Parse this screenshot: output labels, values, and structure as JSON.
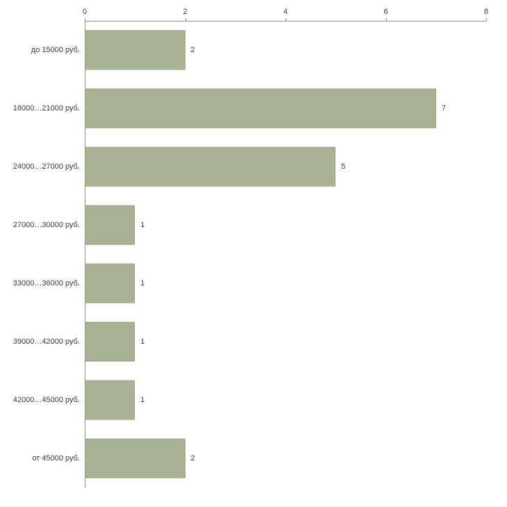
{
  "chart_data": {
    "type": "bar",
    "orientation": "horizontal",
    "title": "",
    "xlabel": "",
    "ylabel": "",
    "categories": [
      "до 15000 руб.",
      "18000…21000 руб.",
      "24000…27000 руб.",
      "27000…30000 руб.",
      "33000…36000 руб.",
      "39000…42000 руб.",
      "42000…45000 руб.",
      "от 45000 руб."
    ],
    "values": [
      2,
      7,
      5,
      1,
      1,
      1,
      1,
      2
    ],
    "value_labels": [
      "2",
      "7",
      "5",
      "1",
      "1",
      "1",
      "1",
      "2"
    ],
    "xlim": [
      0,
      8
    ],
    "xticks": [
      "0",
      "2",
      "4",
      "6",
      "8"
    ],
    "xtick_values": [
      0,
      2,
      4,
      6,
      8
    ],
    "grid": false,
    "legend": null,
    "colors": {
      "bar_fill": "#a9b294",
      "bar_border": "#97a181",
      "axis": "#8c8c8c",
      "text": "#3c3c3c",
      "background": "#ffffff"
    }
  }
}
